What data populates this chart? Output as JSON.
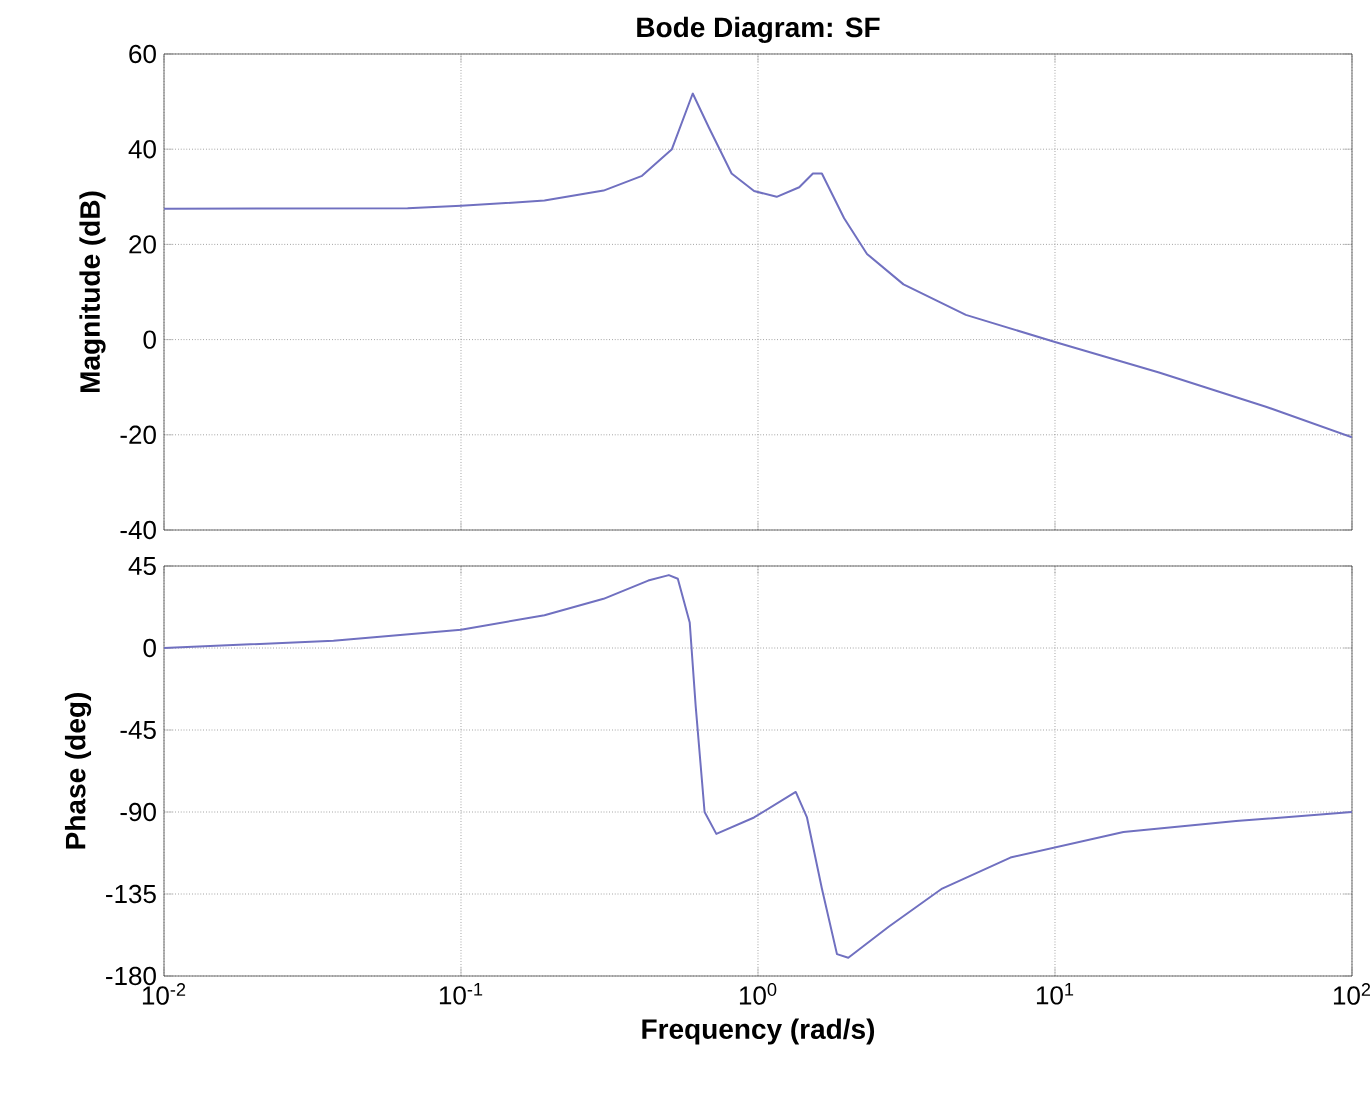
{
  "chart_data": [
    {
      "type": "line",
      "title": "Bode Diagram: SF",
      "ylabel": "Magnitude (dB)",
      "log": "x",
      "grid": true,
      "tick_labels": "y",
      "xlim": [
        0.01,
        100
      ],
      "xticks": [
        {
          "value": 0.01,
          "label": null
        },
        {
          "value": 0.1,
          "label": null
        },
        {
          "value": 1,
          "label": null
        },
        {
          "value": 10,
          "label": null
        },
        {
          "value": 100,
          "label": null
        }
      ],
      "ylim": [
        -40,
        60
      ],
      "yticks": [
        -40,
        -20,
        0,
        20,
        40,
        60
      ],
      "series": [
        {
          "color": "#7070c0",
          "x": [
            0.01,
            0.0661,
            0.1,
            0.191,
            0.302,
            0.407,
            0.513,
            0.603,
            0.684,
            0.815,
            0.97,
            1.156,
            1.377,
            1.531,
            1.641,
            1.95,
            2.328,
            3.09,
            5.01,
            10,
            22.4,
            51.3,
            100
          ],
          "values": [
            27.5,
            27.6,
            28.1,
            29.2,
            31.3,
            34.4,
            40,
            51.7,
            44.5,
            34.9,
            31.2,
            30,
            32,
            34.9,
            34.9,
            25.5,
            18,
            11.6,
            5.2,
            -0.5,
            -6.9,
            -14.1,
            -20.5
          ]
        }
      ]
    },
    {
      "type": "line",
      "xlabel": "Frequency  (rad/s)",
      "ylabel": "Phase (deg)",
      "log": "x",
      "grid": true,
      "xlim": [
        0.01,
        100
      ],
      "xticks": [
        {
          "value": 0.01,
          "label": "10$^{-2}$"
        },
        {
          "value": 0.1,
          "label": "10$^{-1}$"
        },
        {
          "value": 1,
          "label": "10$^{0}$"
        },
        {
          "value": 10,
          "label": "10$^{1}$"
        },
        {
          "value": 100,
          "label": "10$^{2}$"
        }
      ],
      "ylim": [
        -180,
        45
      ],
      "yticks": [
        -180,
        -135,
        -90,
        -45,
        0,
        45
      ],
      "series": [
        {
          "color": "#7070c0",
          "x": [
            0.01,
            0.0372,
            0.1,
            0.191,
            0.302,
            0.427,
            0.501,
            0.537,
            0.589,
            0.617,
            0.661,
            0.724,
            0.97,
            1.34,
            1.462,
            1.641,
            1.845,
            2.014,
            2.754,
            4.17,
            7.08,
            17.0,
            40.7,
            100
          ],
          "values": [
            0,
            4,
            10,
            18,
            27,
            37,
            40,
            38,
            14,
            -32,
            -90,
            -102,
            -93,
            -79,
            -93,
            -132,
            -168,
            -170,
            -153,
            -132,
            -115,
            -101,
            -95,
            -90
          ]
        }
      ]
    }
  ]
}
